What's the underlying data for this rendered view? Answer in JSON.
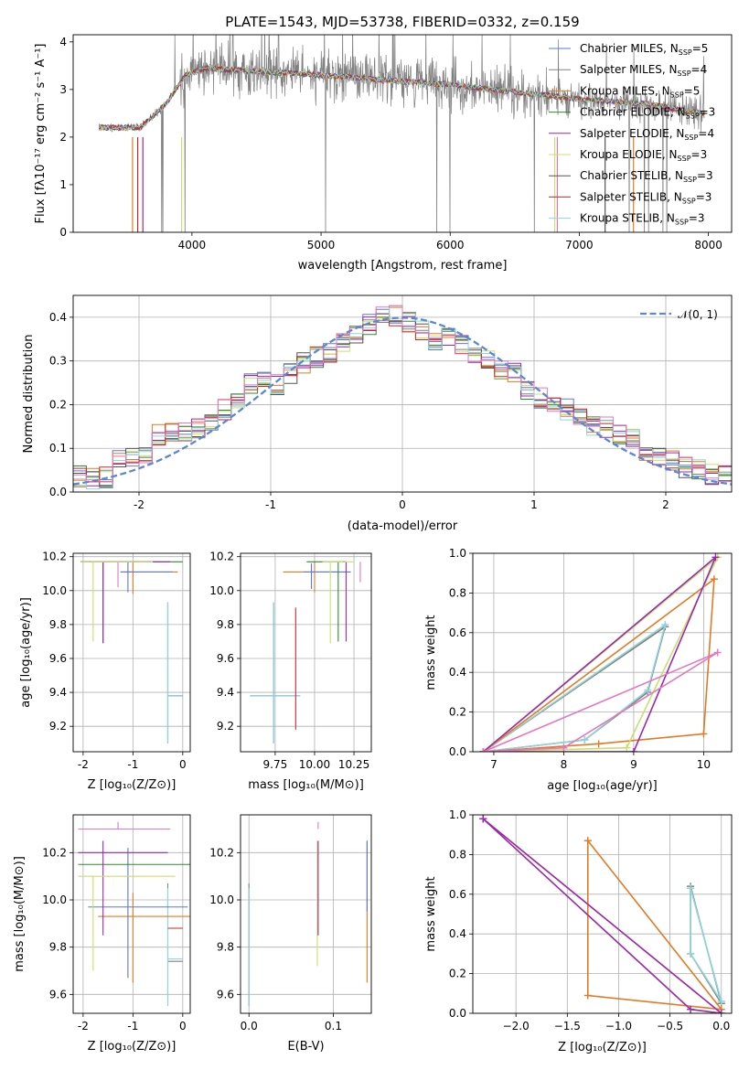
{
  "figure_title": "PLATE=1543, MJD=53738, FIBERID=0332, z=0.159",
  "colors": [
    "#5a78d4",
    "#808080",
    "#e07b25",
    "#2f8a2f",
    "#9c27b0",
    "#c8e06b",
    "#555555",
    "#c62828",
    "#8fd5d9",
    "#e377c2"
  ],
  "chart_data": [
    {
      "id": "spectrum",
      "type": "line",
      "title": "PLATE=1543, MJD=53738, FIBERID=0332, z=0.159",
      "xlabel": "wavelength [Angstrom, rest frame]",
      "ylabel": "Flux [fλ10⁻¹⁷ erg cm⁻² s⁻¹ A⁻¹]",
      "xlim": [
        3080,
        8180
      ],
      "ylim": [
        0,
        4.15
      ],
      "xticks": [
        4000,
        5000,
        6000,
        7000,
        8000
      ],
      "yticks": [
        0,
        1,
        2,
        3,
        4
      ],
      "legend": "top-right",
      "grid": false,
      "data_range": [
        3280,
        7970
      ],
      "continuum_anchors": [
        [
          3280,
          2.2
        ],
        [
          3600,
          2.2
        ],
        [
          3800,
          2.7
        ],
        [
          3950,
          3.3
        ],
        [
          4100,
          3.45
        ],
        [
          4400,
          3.4
        ],
        [
          4700,
          3.35
        ],
        [
          5000,
          3.3
        ],
        [
          5500,
          3.2
        ],
        [
          6000,
          3.1
        ],
        [
          6500,
          2.95
        ],
        [
          7000,
          2.8
        ],
        [
          7500,
          2.7
        ],
        [
          7970,
          2.5
        ]
      ],
      "series": [
        {
          "name": "Chabrier MILES, N",
          "sub": "SSP",
          "suffix": "=5"
        },
        {
          "name": "Salpeter MILES, N",
          "sub": "SSP",
          "suffix": "=4"
        },
        {
          "name": "Kroupa MILES, N",
          "sub": "SSP",
          "suffix": "=5"
        },
        {
          "name": "Chabrier ELODIE, N",
          "sub": "SSP",
          "suffix": "=3"
        },
        {
          "name": "Salpeter ELODIE, N",
          "sub": "SSP",
          "suffix": "=4"
        },
        {
          "name": "Kroupa ELODIE, N",
          "sub": "SSP",
          "suffix": "=3"
        },
        {
          "name": "Chabrier STELIB, N",
          "sub": "SSP",
          "suffix": "=3"
        },
        {
          "name": "Salpeter STELIB, N",
          "sub": "SSP",
          "suffix": "=3"
        },
        {
          "name": "Kroupa STELIB, N",
          "sub": "SSP",
          "suffix": "=3"
        }
      ]
    },
    {
      "id": "residuals",
      "type": "step",
      "xlabel": "(data-model)/error",
      "ylabel": "Normed distribution",
      "xlim": [
        -2.5,
        2.5
      ],
      "ylim": [
        0,
        0.45
      ],
      "xticks": [
        -2,
        -1,
        0,
        1,
        2
      ],
      "yticks": [
        0.0,
        0.1,
        0.2,
        0.3,
        0.4
      ],
      "grid": true,
      "bins": [
        -2.5,
        2.5,
        50
      ],
      "base": [
        0.035,
        0.03,
        0.034,
        0.07,
        0.075,
        0.092,
        0.13,
        0.135,
        0.14,
        0.148,
        0.155,
        0.19,
        0.215,
        0.25,
        0.26,
        0.245,
        0.27,
        0.295,
        0.31,
        0.32,
        0.345,
        0.36,
        0.385,
        0.4,
        0.405,
        0.39,
        0.37,
        0.35,
        0.36,
        0.34,
        0.32,
        0.3,
        0.28,
        0.27,
        0.23,
        0.215,
        0.2,
        0.19,
        0.17,
        0.155,
        0.15,
        0.13,
        0.12,
        0.095,
        0.08,
        0.07,
        0.058,
        0.05,
        0.04,
        0.04
      ],
      "ref_curve": {
        "name": "𝒩(0, 1)",
        "color": "#5b87d6",
        "legend": "top-right"
      }
    },
    {
      "id": "age-vs-z",
      "type": "errorbar",
      "xlabel": "Z [log₁₀(Z/Z⊙)]",
      "ylabel": "age  [log₁₀(age/yr)]",
      "xlim": [
        -2.2,
        0.15
      ],
      "ylim": [
        9.05,
        10.22
      ],
      "xticks": [
        -2,
        -1,
        0
      ],
      "yticks": [
        9.2,
        9.4,
        9.6,
        9.8,
        10.0,
        10.2
      ],
      "grid": true,
      "points": [
        {
          "x": -0.3,
          "y": 9.38,
          "xerr": [
            0.0,
            0.3
          ],
          "yerr": [
            0.28,
            0.55
          ],
          "c": 0
        },
        {
          "x": -0.3,
          "y": 9.38,
          "xerr": [
            0.0,
            0.3
          ],
          "yerr": [
            0.28,
            0.55
          ],
          "c": 1
        },
        {
          "x": -0.3,
          "y": 9.38,
          "xerr": [
            0.0,
            0.3
          ],
          "yerr": [
            0.28,
            0.55
          ],
          "c": 8
        },
        {
          "x": -1.0,
          "y": 10.11,
          "xerr": [
            0.25,
            0.9
          ],
          "yerr": [
            0.13,
            0.06
          ],
          "c": 2
        },
        {
          "x": -1.1,
          "y": 10.11,
          "xerr": [
            0.15,
            0.9
          ],
          "yerr": [
            0.12,
            0.06
          ],
          "c": 0
        },
        {
          "x": -1.3,
          "y": 10.11,
          "xerr": [
            0.0,
            0.0
          ],
          "yerr": [
            0.09,
            0.06
          ],
          "c": 9
        },
        {
          "x": -1.6,
          "y": 10.17,
          "xerr": [
            0.45,
            1.6
          ],
          "yerr": [
            0.48,
            0.0
          ],
          "c": 3
        },
        {
          "x": -1.6,
          "y": 10.17,
          "xerr": [
            0.45,
            1.35
          ],
          "yerr": [
            0.48,
            0.0
          ],
          "c": 4
        },
        {
          "x": -1.8,
          "y": 10.17,
          "xerr": [
            0.25,
            1.2
          ],
          "yerr": [
            0.47,
            0.0
          ],
          "c": 5
        }
      ]
    },
    {
      "id": "age-vs-mass",
      "type": "errorbar",
      "xlabel": "mass [log₁₀(M/M⊙)]",
      "ylabel": "",
      "xlim": [
        9.53,
        10.36
      ],
      "ylim": [
        9.05,
        10.22
      ],
      "xticks": [
        9.75,
        10.0,
        10.25
      ],
      "xticklabels": [
        "9.75",
        "10.00",
        "10.25"
      ],
      "yticks": [
        9.2,
        9.4,
        9.6,
        9.8,
        10.0,
        10.2
      ],
      "grid": true,
      "points": [
        {
          "x": 9.74,
          "y": 9.38,
          "xerr": [
            0.15,
            0.17
          ],
          "yerr": [
            0.28,
            0.55
          ],
          "c": 0
        },
        {
          "x": 9.74,
          "y": 9.38,
          "xerr": [
            0.15,
            0.17
          ],
          "yerr": [
            0.28,
            0.55
          ],
          "c": 8
        },
        {
          "x": 9.88,
          "y": 9.38,
          "xerr": [
            0.0,
            0.0
          ],
          "yerr": [
            0.2,
            0.52
          ],
          "c": 7
        },
        {
          "x": 10.0,
          "y": 10.11,
          "xerr": [
            0.2,
            0.15
          ],
          "yerr": [
            0.12,
            0.06
          ],
          "c": 2
        },
        {
          "x": 9.98,
          "y": 10.11,
          "xerr": [
            0.05,
            0.25
          ],
          "yerr": [
            0.1,
            0.05
          ],
          "c": 0
        },
        {
          "x": 10.15,
          "y": 10.17,
          "xerr": [
            0.2,
            0.05
          ],
          "yerr": [
            0.47,
            0.0
          ],
          "c": 3
        },
        {
          "x": 10.2,
          "y": 10.17,
          "xerr": [
            0.02,
            0.0
          ],
          "yerr": [
            0.47,
            0.0
          ],
          "c": 4
        },
        {
          "x": 10.1,
          "y": 10.17,
          "xerr": [
            0.05,
            0.15
          ],
          "yerr": [
            0.48,
            0.0
          ],
          "c": 5
        },
        {
          "x": 10.29,
          "y": 10.17,
          "xerr": [
            0.0,
            0.0
          ],
          "yerr": [
            0.12,
            0.0
          ],
          "c": 9
        }
      ]
    },
    {
      "id": "weight-vs-age",
      "type": "line",
      "xlabel": "age  [log₁₀(age/yr)]",
      "ylabel": "mass weight",
      "xlim": [
        6.7,
        10.4
      ],
      "ylim": [
        0,
        1.0
      ],
      "xticks": [
        7,
        8,
        9,
        10
      ],
      "yticks": [
        0.0,
        0.2,
        0.4,
        0.6,
        0.8,
        1.0
      ],
      "grid": true,
      "series": [
        {
          "c": 1,
          "x": [
            6.85,
            8.3,
            9.2,
            9.45,
            6.85
          ],
          "y": [
            0.0,
            0.06,
            0.3,
            0.63,
            0.0
          ]
        },
        {
          "c": 8,
          "x": [
            6.85,
            8.3,
            9.2,
            9.45,
            6.85
          ],
          "y": [
            0.0,
            0.06,
            0.31,
            0.64,
            0.0
          ]
        },
        {
          "c": 2,
          "x": [
            6.85,
            8.5,
            10.0,
            10.15,
            6.85
          ],
          "y": [
            0.0,
            0.04,
            0.09,
            0.87,
            0.0
          ]
        },
        {
          "c": 5,
          "x": [
            6.85,
            8.9,
            10.2,
            6.85
          ],
          "y": [
            0.0,
            0.02,
            0.98,
            0.0
          ]
        },
        {
          "c": 4,
          "x": [
            6.85,
            9.0,
            10.17,
            6.85
          ],
          "y": [
            0.0,
            0.0,
            0.98,
            0.0
          ]
        },
        {
          "c": 9,
          "x": [
            6.85,
            8.0,
            10.2,
            6.85
          ],
          "y": [
            0.0,
            0.02,
            0.5,
            0.0
          ]
        }
      ]
    },
    {
      "id": "mass-vs-z",
      "type": "errorbar",
      "xlabel": "Z [log₁₀(Z/Z⊙)]",
      "ylabel": "mass [log₁₀(M/M⊙)]",
      "xlim": [
        -2.2,
        0.15
      ],
      "ylim": [
        9.52,
        10.36
      ],
      "xticks": [
        -2,
        -1,
        0
      ],
      "yticks": [
        9.6,
        9.8,
        10.0,
        10.2
      ],
      "grid": true,
      "points": [
        {
          "x": -0.3,
          "y": 9.74,
          "xerr": [
            0.0,
            0.3
          ],
          "yerr": [
            0.18,
            0.33
          ],
          "c": 1
        },
        {
          "x": -0.3,
          "y": 9.75,
          "xerr": [
            0.0,
            0.3
          ],
          "yerr": [
            0.2,
            0.3
          ],
          "c": 8
        },
        {
          "x": -0.3,
          "y": 9.88,
          "xerr": [
            0.0,
            0.3
          ],
          "yerr": [
            0.0,
            0.0
          ],
          "c": 7
        },
        {
          "x": -1.0,
          "y": 9.93,
          "xerr": [
            0.7,
            1.3
          ],
          "yerr": [
            0.28,
            0.1
          ],
          "c": 2
        },
        {
          "x": -1.1,
          "y": 9.97,
          "xerr": [
            0.8,
            1.2
          ],
          "yerr": [
            0.3,
            0.25
          ],
          "c": 0
        },
        {
          "x": -1.6,
          "y": 10.15,
          "xerr": [
            0.5,
            1.8
          ],
          "yerr": [
            0.0,
            0.0
          ],
          "c": 3
        },
        {
          "x": -1.6,
          "y": 10.2,
          "xerr": [
            0.5,
            1.3
          ],
          "yerr": [
            0.35,
            0.05
          ],
          "c": 4
        },
        {
          "x": -1.8,
          "y": 10.1,
          "xerr": [
            0.3,
            1.65
          ],
          "yerr": [
            0.4,
            0.0
          ],
          "c": 5
        },
        {
          "x": -1.3,
          "y": 10.3,
          "xerr": [
            0.8,
            1.05
          ],
          "yerr": [
            0.0,
            0.03
          ],
          "c": 9
        }
      ]
    },
    {
      "id": "mass-vs-ebv",
      "type": "errorbar",
      "xlabel": "E(B-V)",
      "ylabel": "",
      "xlim": [
        -0.01,
        0.145
      ],
      "ylim": [
        9.52,
        10.36
      ],
      "xticks": [
        0.0,
        0.1
      ],
      "xticklabels": [
        "0.0",
        "0.1"
      ],
      "yticks": [
        9.6,
        9.8,
        10.0,
        10.2
      ],
      "grid": true,
      "points": [
        {
          "x": 0.0,
          "y": 9.75,
          "xerr": [
            0,
            0
          ],
          "yerr": [
            0.2,
            0.32
          ],
          "c": 1
        },
        {
          "x": 0.0,
          "y": 9.75,
          "xerr": [
            0,
            0
          ],
          "yerr": [
            0.2,
            0.3
          ],
          "c": 8
        },
        {
          "x": 0.081,
          "y": 10.2,
          "xerr": [
            0,
            0
          ],
          "yerr": [
            0.48,
            0.05
          ],
          "c": 5
        },
        {
          "x": 0.082,
          "y": 10.2,
          "xerr": [
            0,
            0
          ],
          "yerr": [
            0.35,
            0.05
          ],
          "c": 4
        },
        {
          "x": 0.082,
          "y": 10.3,
          "xerr": [
            0,
            0
          ],
          "yerr": [
            0.0,
            0.03
          ],
          "c": 9
        },
        {
          "x": 0.14,
          "y": 9.95,
          "xerr": [
            0,
            0
          ],
          "yerr": [
            0.3,
            0.3
          ],
          "c": 2
        },
        {
          "x": 0.14,
          "y": 10.0,
          "xerr": [
            0,
            0
          ],
          "yerr": [
            0.05,
            0.25
          ],
          "c": 0
        }
      ]
    },
    {
      "id": "weight-vs-z",
      "type": "line",
      "xlabel": "Z [log₁₀(Z/Z⊙)]",
      "ylabel": "mass weight",
      "xlim": [
        -2.42,
        0.1
      ],
      "ylim": [
        0,
        1.0
      ],
      "xticks": [
        -2.0,
        -1.5,
        -1.0,
        -0.5,
        0.0
      ],
      "xticklabels": [
        "−2.0",
        "−1.5",
        "−1.0",
        "−0.5",
        "0.0"
      ],
      "yticks": [
        0.0,
        0.2,
        0.4,
        0.6,
        0.8,
        1.0
      ],
      "grid": true,
      "series": [
        {
          "c": 1,
          "x": [
            0.0,
            -0.3,
            -0.3,
            0.0
          ],
          "y": [
            0.05,
            0.64,
            0.3,
            0.05
          ]
        },
        {
          "c": 8,
          "x": [
            0.0,
            -0.3,
            -0.3,
            0.0
          ],
          "y": [
            0.06,
            0.63,
            0.3,
            0.06
          ]
        },
        {
          "c": 2,
          "x": [
            -1.3,
            -1.3,
            0.0,
            -1.3
          ],
          "y": [
            0.87,
            0.09,
            0.02,
            0.87
          ]
        },
        {
          "c": 5,
          "x": [
            -2.32,
            -0.3,
            0.0,
            -2.32
          ],
          "y": [
            0.98,
            0.02,
            0.0,
            0.98
          ]
        },
        {
          "c": 4,
          "x": [
            -2.32,
            0.0,
            -0.3,
            -2.32
          ],
          "y": [
            0.98,
            0.0,
            0.02,
            0.98
          ]
        }
      ]
    }
  ]
}
